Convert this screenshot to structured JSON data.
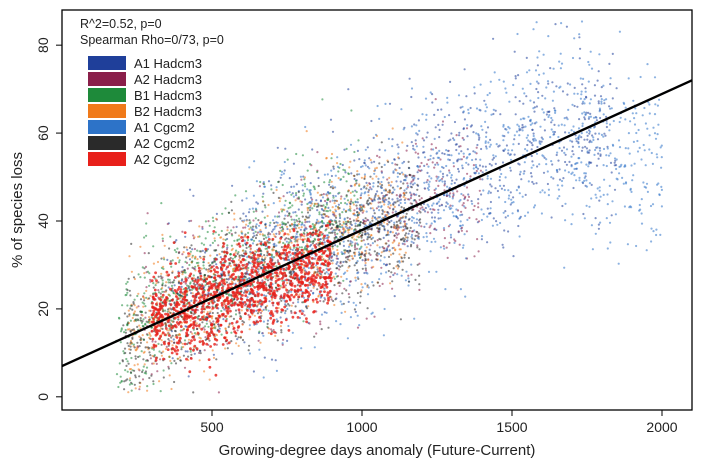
{
  "chart_data": {
    "type": "scatter",
    "xlabel": "Growing-degree days anomaly (Future-Current)",
    "ylabel": "% of species loss",
    "xlim": [
      0,
      2100
    ],
    "ylim": [
      -3,
      88
    ],
    "x_ticks": [
      500,
      1000,
      1500,
      2000
    ],
    "y_ticks": [
      0,
      20,
      40,
      60,
      80
    ],
    "annotations": [
      "R^2=0.52, p=0",
      "Spearman Rho=0/73, p=0"
    ],
    "legend_position": "top-left",
    "grid": false,
    "series": [
      {
        "name": "A1 Hadcm3",
        "color": "#1f3f9a",
        "x_range": [
          350,
          1850
        ],
        "y_center_at_x": [
          [
            400,
            22
          ],
          [
            900,
            38
          ],
          [
            1300,
            52
          ],
          [
            1600,
            58
          ]
        ]
      },
      {
        "name": "A2 Hadcm3",
        "color": "#8a1f4a",
        "x_range": [
          250,
          1400
        ],
        "y_center_at_x": [
          [
            300,
            18
          ],
          [
            800,
            32
          ],
          [
            1200,
            45
          ]
        ]
      },
      {
        "name": "B1 Hadcm3",
        "color": "#1e8a3a",
        "x_range": [
          180,
          1000
        ],
        "y_center_at_x": [
          [
            200,
            12
          ],
          [
            500,
            28
          ],
          [
            900,
            42
          ]
        ]
      },
      {
        "name": "B2 Hadcm3",
        "color": "#f07a1a",
        "x_range": [
          220,
          1150
        ],
        "y_center_at_x": [
          [
            250,
            15
          ],
          [
            700,
            30
          ],
          [
            1050,
            42
          ]
        ]
      },
      {
        "name": "A1 Cgcm2",
        "color": "#2d73c8",
        "x_range": [
          600,
          2000
        ],
        "y_center_at_x": [
          [
            700,
            30
          ],
          [
            1200,
            45
          ],
          [
            1600,
            60
          ],
          [
            1900,
            55
          ]
        ]
      },
      {
        "name": "A2 Cgcm2",
        "color": "#2a2a2a",
        "x_range": [
          200,
          1200
        ],
        "y_center_at_x": [
          [
            250,
            14
          ],
          [
            600,
            26
          ],
          [
            1000,
            38
          ]
        ]
      },
      {
        "name": "A2 Cgcm2",
        "color": "#e8201a",
        "x_range": [
          300,
          900
        ],
        "y_center_at_x": [
          [
            350,
            18
          ],
          [
            600,
            24
          ],
          [
            850,
            30
          ]
        ]
      }
    ],
    "regression_line": {
      "x": [
        0,
        2100
      ],
      "y": [
        7,
        72
      ],
      "color": "#000000"
    }
  }
}
